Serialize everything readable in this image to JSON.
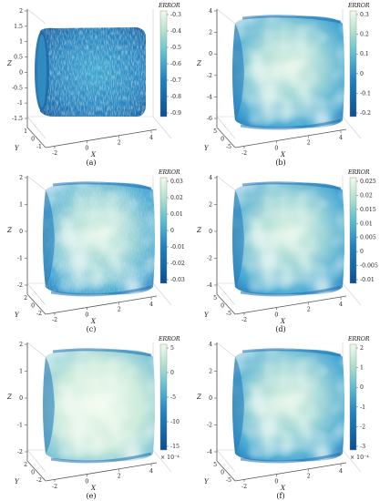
{
  "figure": {
    "panels": [
      {
        "caption": "(a)",
        "colorbar_title": "ERROR",
        "colorbar_ticks": [
          "-0.3",
          "-0.4",
          "-0.5",
          "-0.6",
          "-0.7",
          "-0.8",
          "-0.9"
        ],
        "colorbar_multiplier": "",
        "z_ticks": [
          "2",
          "1.5",
          "1",
          "0.5",
          "0",
          "-0.5",
          "-1",
          "-1.5"
        ],
        "y_ticks": [
          "1",
          "0",
          "-1"
        ],
        "x_ticks": [
          "-2",
          "0",
          "2",
          "4"
        ],
        "x_label": "X",
        "y_label": "Y",
        "z_label": "Z",
        "surface": "noisy-cylinder"
      },
      {
        "caption": "(b)",
        "colorbar_title": "ERROR",
        "colorbar_ticks": [
          "0.3",
          "0.2",
          "0.1",
          "0",
          "-0.1",
          "-0.2"
        ],
        "colorbar_multiplier": "",
        "z_ticks": [
          "4",
          "2",
          "0",
          "-2",
          "-4",
          "-6"
        ],
        "y_ticks": [
          "5",
          "0",
          "-5"
        ],
        "x_ticks": [
          "-2",
          "0",
          "2",
          "4"
        ],
        "x_label": "X",
        "y_label": "Y",
        "z_label": "Z",
        "surface": "smooth-barrel"
      },
      {
        "caption": "(c)",
        "colorbar_title": "ERROR",
        "colorbar_ticks": [
          "0.03",
          "0.02",
          "0.01",
          "0",
          "-0.01",
          "-0.02",
          "-0.03"
        ],
        "colorbar_multiplier": "",
        "z_ticks": [
          "2",
          "1",
          "0",
          "-1",
          "-2"
        ],
        "y_ticks": [
          "2",
          "0",
          "-2"
        ],
        "x_ticks": [
          "-2",
          "0",
          "2",
          "4"
        ],
        "x_label": "X",
        "y_label": "Y",
        "z_label": "Z",
        "surface": "textured-barrel"
      },
      {
        "caption": "(d)",
        "colorbar_title": "ERROR",
        "colorbar_ticks": [
          "0.025",
          "0.02",
          "0.015",
          "0.01",
          "0.005",
          "0",
          "-0.005",
          "-0.01"
        ],
        "colorbar_multiplier": "",
        "z_ticks": [
          "4",
          "2",
          "0",
          "-2",
          "-4"
        ],
        "y_ticks": [
          "5",
          "0",
          "-5"
        ],
        "x_ticks": [
          "-2",
          "0",
          "2",
          "4"
        ],
        "x_label": "X",
        "y_label": "Y",
        "z_label": "Z",
        "surface": "smooth-barrel"
      },
      {
        "caption": "(e)",
        "colorbar_title": "ERROR",
        "colorbar_ticks": [
          "5",
          "0",
          "-5",
          "-10",
          "-15"
        ],
        "colorbar_multiplier": "× 10⁻⁴",
        "z_ticks": [
          "2",
          "1",
          "0",
          "-1",
          "-2"
        ],
        "y_ticks": [
          "2",
          "0",
          "-2"
        ],
        "x_ticks": [
          "-2",
          "0",
          "2",
          "4"
        ],
        "x_label": "X",
        "y_label": "Y",
        "z_label": "Z",
        "surface": "light-barrel"
      },
      {
        "caption": "(f)",
        "colorbar_title": "ERROR",
        "colorbar_ticks": [
          "2",
          "1",
          "0",
          "-1",
          "-2",
          "-3"
        ],
        "colorbar_multiplier": "× 10⁻⁴",
        "z_ticks": [
          "4",
          "2",
          "0",
          "-2",
          "-4"
        ],
        "y_ticks": [
          "5",
          "0",
          "-5"
        ],
        "x_ticks": [
          "-2",
          "0",
          "2",
          "4"
        ],
        "x_label": "X",
        "y_label": "Y",
        "z_label": "Z",
        "surface": "smooth-barrel"
      }
    ],
    "colors": {
      "dark": "#0b4f91",
      "mid": "#2a9ccb",
      "light": "#e8f6e4",
      "axis": "#555555",
      "grid": "#d0d0d0"
    }
  }
}
